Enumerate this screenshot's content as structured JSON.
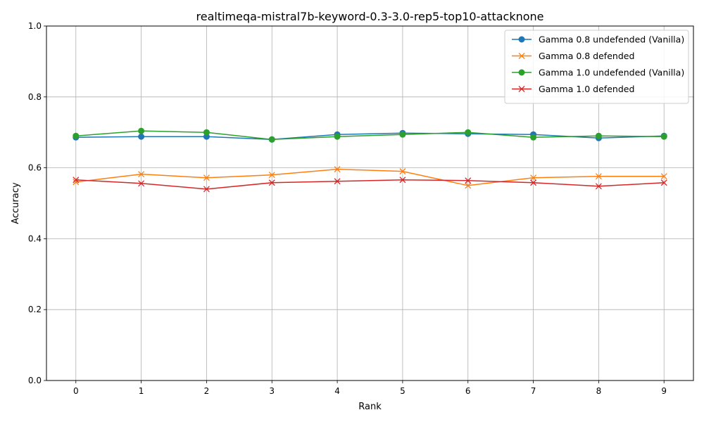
{
  "chart_data": {
    "type": "line",
    "title": "realtimeqa-mistral7b-keyword-0.3-3.0-rep5-top10-attacknone",
    "xlabel": "Rank",
    "ylabel": "Accuracy",
    "x": [
      0,
      1,
      2,
      3,
      4,
      5,
      6,
      7,
      8,
      9
    ],
    "xlim": [
      -0.45,
      9.45
    ],
    "ylim": [
      0,
      1
    ],
    "yticks": [
      0.0,
      0.2,
      0.4,
      0.6,
      0.8,
      1.0
    ],
    "ytick_labels": [
      "0.0",
      "0.2",
      "0.4",
      "0.6",
      "0.8",
      "1.0"
    ],
    "grid": true,
    "legend_position": "top-right",
    "series": [
      {
        "name": "Gamma 0.8 undefended (Vanilla)",
        "color": "#1f77b4",
        "marker": "circle",
        "values": [
          0.686,
          0.688,
          0.688,
          0.68,
          0.694,
          0.698,
          0.696,
          0.694,
          0.684,
          0.69
        ]
      },
      {
        "name": "Gamma 0.8 defended",
        "color": "#ff7f0e",
        "marker": "x",
        "values": [
          0.56,
          0.582,
          0.572,
          0.58,
          0.596,
          0.59,
          0.55,
          0.572,
          0.576,
          0.576
        ]
      },
      {
        "name": "Gamma 1.0 undefended (Vanilla)",
        "color": "#2ca02c",
        "marker": "circle",
        "values": [
          0.69,
          0.704,
          0.7,
          0.68,
          0.688,
          0.694,
          0.7,
          0.686,
          0.69,
          0.688
        ]
      },
      {
        "name": "Gamma 1.0 defended",
        "color": "#d62728",
        "marker": "x",
        "values": [
          0.566,
          0.556,
          0.54,
          0.558,
          0.562,
          0.566,
          0.564,
          0.558,
          0.548,
          0.558
        ]
      }
    ]
  }
}
